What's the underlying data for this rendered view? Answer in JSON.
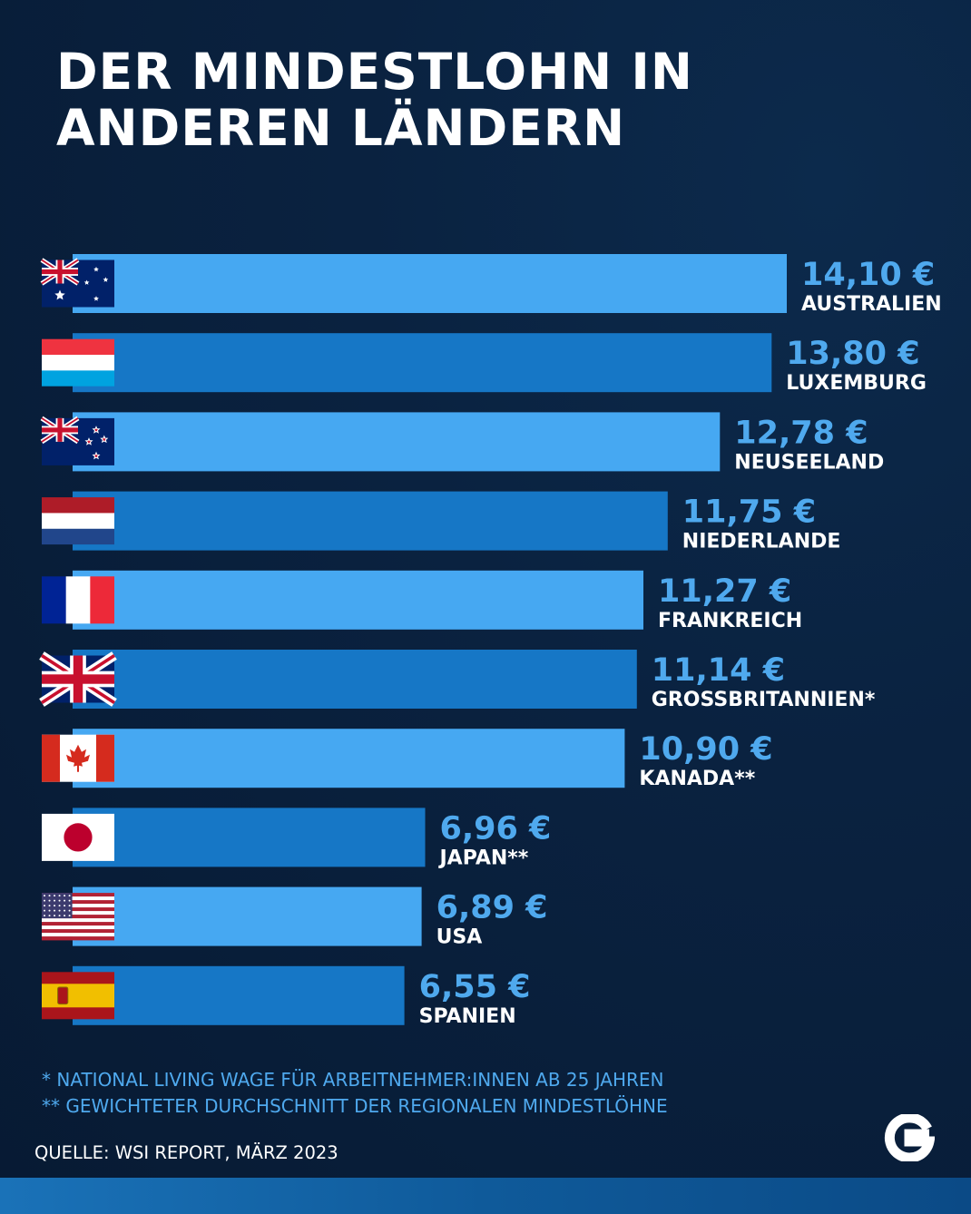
{
  "title": {
    "line1": "DER MINDESTLOHN IN",
    "line2": "ANDEREN LÄNDERN"
  },
  "chart_data": {
    "type": "bar",
    "orientation": "horizontal",
    "unit": "€",
    "categories": [
      "AUSTRALIEN",
      "LUXEMBURG",
      "NEUSEELAND",
      "NIEDERLANDE",
      "FRANKREICH",
      "GROSSBRITANNIEN*",
      "KANADA**",
      "JAPAN**",
      "USA",
      "SPANIEN"
    ],
    "values": [
      14.1,
      13.8,
      12.78,
      11.75,
      11.27,
      11.14,
      10.9,
      6.96,
      6.89,
      6.55
    ],
    "value_labels": [
      "14,10 €",
      "13,80 €",
      "12,78 €",
      "11,75 €",
      "11,27 €",
      "11,14 €",
      "10,90 €",
      "6,96 €",
      "6,89 €",
      "6,55 €"
    ],
    "flags": [
      "australia-flag",
      "luxembourg-flag",
      "new-zealand-flag",
      "netherlands-flag",
      "france-flag",
      "uk-flag",
      "canada-flag",
      "japan-flag",
      "usa-flag",
      "spain-flag"
    ],
    "bar_colors": [
      "#46a8f2",
      "#1677c6"
    ],
    "value_label_color": "#4fa9ee",
    "category_label_color": "#ffffff",
    "grid": false,
    "legend": "none"
  },
  "footnotes": [
    "* NATIONAL LIVING WAGE FÜR ARBEITNEHMER:INNEN AB 25 JAHREN",
    "** GEWICHTETER DURCHSCHNITT DER REGIONALEN MINDESTLÖHNE"
  ],
  "source": "QUELLE: WSI REPORT, MÄRZ 2023",
  "logo": {
    "icon": "g-logo-icon"
  },
  "colors": {
    "background": "#0a2240",
    "accent": "#46a8f2",
    "bar_alt": "#1677c6",
    "bottom_strip": "#1a72b8"
  }
}
